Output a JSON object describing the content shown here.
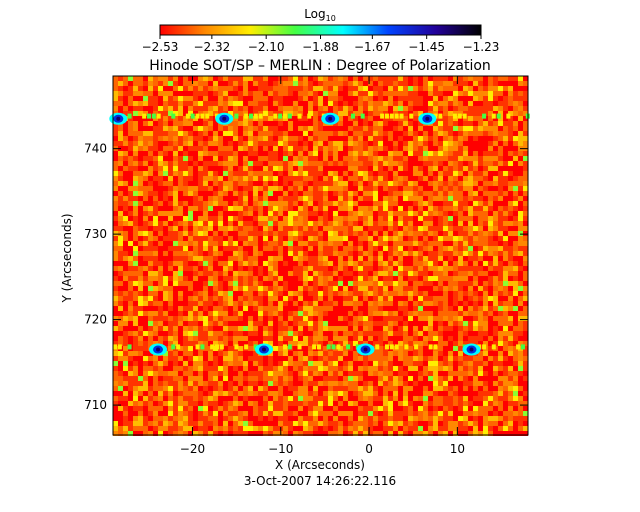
{
  "chart_data": {
    "type": "heatmap",
    "title": "Hinode SOT/SP – MERLIN : Degree of Polarization",
    "footer": "3-Oct-2007 14:26:22.116",
    "xlabel": "X (Arcseconds)",
    "ylabel": "Y (Arcseconds)",
    "xlim": [
      -29,
      18
    ],
    "ylim": [
      706.5,
      748.5
    ],
    "x_ticks": [
      -20,
      -10,
      0,
      10
    ],
    "x_tick_labels": [
      "−20",
      "−10",
      "0",
      "10"
    ],
    "y_ticks": [
      710,
      720,
      730,
      740
    ],
    "y_tick_labels": [
      "710",
      "720",
      "730",
      "740"
    ],
    "colorbar": {
      "label_base": "Log",
      "label_sub": "10",
      "range": [
        -2.53,
        -1.23
      ],
      "ticks": [
        -2.53,
        -2.32,
        -2.1,
        -1.88,
        -1.67,
        -1.45,
        -1.23
      ],
      "tick_labels": [
        "−2.53",
        "−2.32",
        "−2.10",
        "−1.88",
        "−1.67",
        "−1.45",
        "−1.23"
      ],
      "colors": [
        "#ff0000",
        "#ff8800",
        "#ffee00",
        "#44ff44",
        "#00ffff",
        "#0044ff",
        "#220099",
        "#000000"
      ]
    },
    "grid": false
  }
}
